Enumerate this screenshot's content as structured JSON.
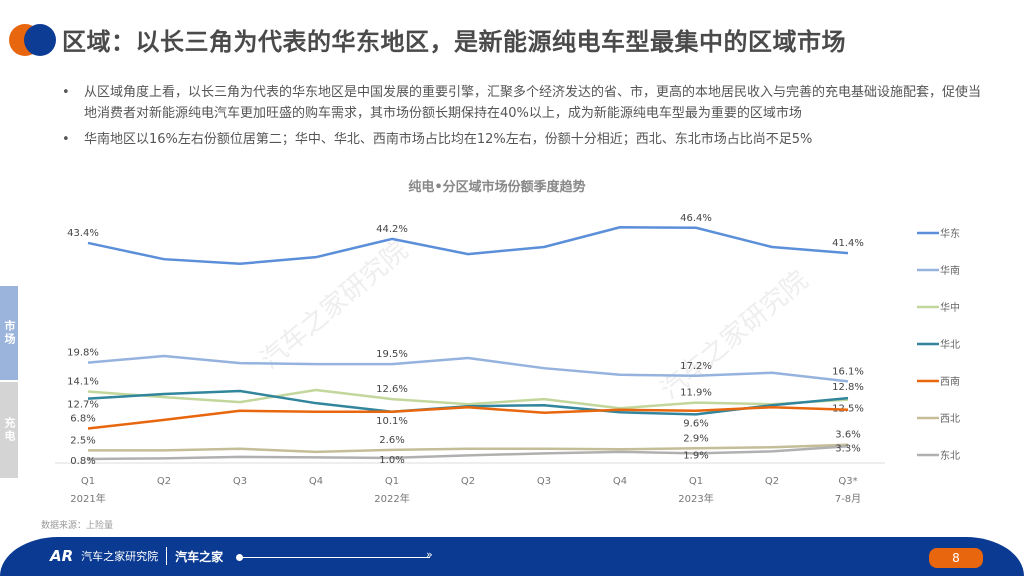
{
  "header": {
    "title": "区域：以长三角为代表的华东地区，是新能源纯电车型最集中的区域市场"
  },
  "bullets": [
    "从区域角度上看，以长三角为代表的华东地区是中国发展的重要引擎，汇聚多个经济发达的省、市，更高的本地居民收入与完善的充电基础设施配套，促使当地消费者对新能源纯电汽车更加旺盛的购车需求，其市场份额长期保持在40%以上，成为新能源纯电车型最为重要的区域市场",
    "华南地区以16%左右份额位居第二；华中、华北、西南市场占比均在12%左右，份额十分相近；西北、东北市场占比尚不足5%"
  ],
  "side_tabs": {
    "market": "市场",
    "charging": "充电"
  },
  "source": "数据来源：上险量",
  "footer": {
    "brand_mark": "AR",
    "brand_name": "汽车之家研究院",
    "brand_sub": "汽车之家",
    "page": "8"
  },
  "watermark": "汽车之家研究院",
  "chart_data": {
    "type": "line",
    "title": "纯电•分区域市场份额季度趋势",
    "categories": [
      "Q1",
      "Q2",
      "Q3",
      "Q4",
      "Q1",
      "Q2",
      "Q3",
      "Q4",
      "Q1",
      "Q2",
      "Q3*"
    ],
    "category_sublabels": [
      "2021年",
      "",
      "",
      "",
      "2022年",
      "",
      "",
      "",
      "2023年",
      "",
      "7-8月"
    ],
    "ylim": [
      0,
      50
    ],
    "unit": "%",
    "legend": "right",
    "grid": false,
    "series": [
      {
        "name": "华东",
        "color": "#5b8fd9",
        "values": [
          43.4,
          40.2,
          39.3,
          40.6,
          44.2,
          41.2,
          42.6,
          46.5,
          46.4,
          42.6,
          41.4
        ],
        "labels": [
          "43.4%",
          null,
          null,
          null,
          "44.2%",
          null,
          null,
          null,
          "46.4%",
          null,
          "41.4%"
        ]
      },
      {
        "name": "华南",
        "color": "#95b3de",
        "values": [
          19.8,
          21.1,
          19.7,
          19.5,
          19.5,
          20.7,
          18.7,
          17.4,
          17.2,
          17.8,
          16.1
        ],
        "labels": [
          "19.8%",
          null,
          null,
          null,
          "19.5%",
          null,
          null,
          null,
          "17.2%",
          null,
          "16.1%"
        ]
      },
      {
        "name": "华中",
        "color": "#c3d69b",
        "values": [
          14.1,
          13.0,
          12.0,
          14.4,
          12.6,
          11.6,
          12.6,
          10.8,
          11.9,
          11.6,
          12.5
        ],
        "labels": [
          "14.1%",
          null,
          null,
          null,
          "12.6%",
          null,
          null,
          null,
          "11.9%",
          null,
          "12.5%"
        ]
      },
      {
        "name": "华北",
        "color": "#31859c",
        "values": [
          12.7,
          13.6,
          14.2,
          11.8,
          10.1,
          11.2,
          11.4,
          10.0,
          9.6,
          11.4,
          12.8
        ],
        "labels": [
          "12.7%",
          null,
          null,
          null,
          "10.1%",
          null,
          null,
          null,
          "9.6%",
          null,
          "12.8%"
        ]
      },
      {
        "name": "西南",
        "color": "#e8660d",
        "values": [
          6.8,
          8.5,
          10.3,
          10.1,
          10.1,
          11.0,
          9.9,
          10.5,
          10.3,
          11.0,
          10.5
        ],
        "labels": [
          "6.8%",
          null,
          null,
          null,
          null,
          null,
          null,
          null,
          null,
          null,
          null
        ]
      },
      {
        "name": "西北",
        "color": "#c4bd97",
        "values": [
          2.5,
          2.5,
          2.8,
          2.2,
          2.6,
          2.8,
          2.8,
          2.7,
          2.9,
          3.1,
          3.6
        ],
        "labels": [
          "2.5%",
          null,
          null,
          null,
          "2.6%",
          null,
          null,
          null,
          "2.9%",
          null,
          "3.6%"
        ]
      },
      {
        "name": "东北",
        "color": "#b0b0b0",
        "values": [
          0.8,
          0.9,
          1.2,
          1.1,
          1.0,
          1.5,
          1.9,
          2.2,
          1.9,
          2.3,
          3.3
        ],
        "labels": [
          "0.8%",
          null,
          null,
          null,
          "1.0%",
          null,
          null,
          null,
          "1.9%",
          null,
          "3.3%"
        ]
      }
    ]
  }
}
